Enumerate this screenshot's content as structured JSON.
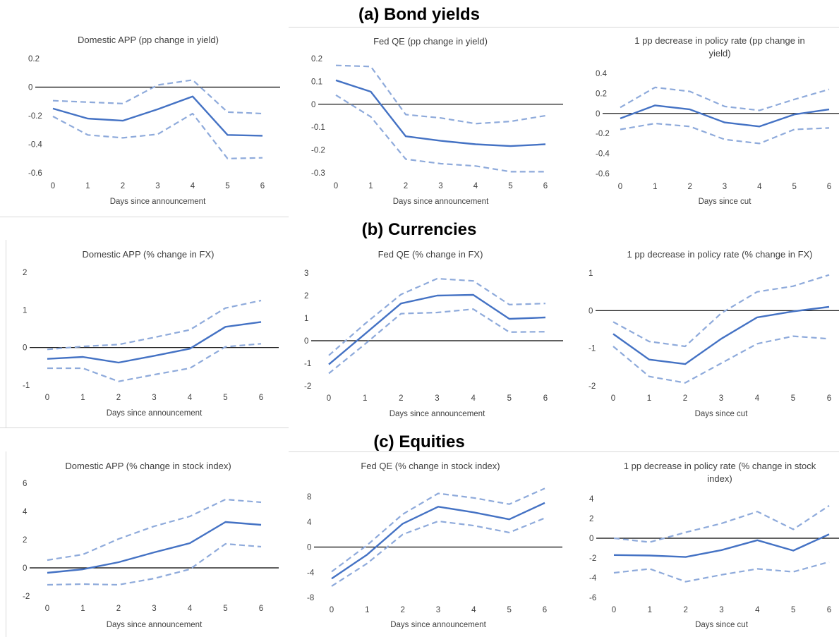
{
  "sections": [
    {
      "title": "(a) Bond yields"
    },
    {
      "title": "(b) Currencies"
    },
    {
      "title": "(c) Equities"
    }
  ],
  "colors": {
    "series": "#4472c4",
    "band": "#8eaadb",
    "zero_line": "#000000",
    "text": "#404040"
  },
  "chart_data": [
    {
      "type": "line",
      "title": "Domestic APP (pp change in yield)",
      "xlabel": "Days since announcement",
      "x": [
        0,
        1,
        2,
        3,
        4,
        5,
        6
      ],
      "ylim": [
        -0.6,
        0.2
      ],
      "yticks": [
        -0.6,
        -0.4,
        -0.2,
        0,
        0.2
      ],
      "legend": "none",
      "series": [
        {
          "role": "estimate",
          "values": [
            -0.15,
            -0.22,
            -0.235,
            -0.155,
            -0.065,
            -0.335,
            -0.34
          ]
        },
        {
          "role": "upper",
          "values": [
            -0.095,
            -0.105,
            -0.115,
            0.015,
            0.05,
            -0.175,
            -0.185
          ]
        },
        {
          "role": "lower",
          "values": [
            -0.205,
            -0.335,
            -0.355,
            -0.33,
            -0.185,
            -0.5,
            -0.495
          ]
        }
      ]
    },
    {
      "type": "line",
      "title": "Fed QE (pp change in yield)",
      "xlabel": "Days since announcement",
      "x": [
        0,
        1,
        2,
        3,
        4,
        5,
        6
      ],
      "ylim": [
        -0.3,
        0.2
      ],
      "yticks": [
        -0.3,
        -0.2,
        -0.1,
        0,
        0.1,
        0.2
      ],
      "legend": "none",
      "series": [
        {
          "role": "estimate",
          "values": [
            0.105,
            0.055,
            -0.14,
            -0.16,
            -0.175,
            -0.183,
            -0.175
          ]
        },
        {
          "role": "upper",
          "values": [
            0.17,
            0.165,
            -0.045,
            -0.06,
            -0.085,
            -0.075,
            -0.05
          ]
        },
        {
          "role": "lower",
          "values": [
            0.04,
            -0.055,
            -0.24,
            -0.26,
            -0.27,
            -0.295,
            -0.295
          ]
        }
      ]
    },
    {
      "type": "line",
      "title": "1 pp decrease in policy rate (pp change in yield)",
      "title_lines": [
        "1 pp decrease in policy rate (pp change in",
        "yield)"
      ],
      "xlabel": "Days since cut",
      "x": [
        0,
        1,
        2,
        3,
        4,
        5,
        6
      ],
      "ylim": [
        -0.6,
        0.4
      ],
      "yticks": [
        -0.6,
        -0.4,
        -0.2,
        0,
        0.2,
        0.4
      ],
      "legend": "none",
      "series": [
        {
          "role": "estimate",
          "values": [
            -0.05,
            0.08,
            0.04,
            -0.09,
            -0.13,
            -0.01,
            0.04
          ]
        },
        {
          "role": "upper",
          "values": [
            0.06,
            0.26,
            0.22,
            0.07,
            0.03,
            0.14,
            0.24
          ]
        },
        {
          "role": "lower",
          "values": [
            -0.16,
            -0.1,
            -0.13,
            -0.26,
            -0.3,
            -0.16,
            -0.145
          ]
        }
      ]
    },
    {
      "type": "line",
      "title": "Domestic APP (% change in FX)",
      "xlabel": "Days since announcement",
      "x": [
        0,
        1,
        2,
        3,
        4,
        5,
        6
      ],
      "ylim": [
        -1,
        2
      ],
      "yticks": [
        -1,
        0,
        1,
        2
      ],
      "legend": "none",
      "series": [
        {
          "role": "estimate",
          "values": [
            -0.3,
            -0.25,
            -0.4,
            -0.22,
            -0.03,
            0.55,
            0.68
          ]
        },
        {
          "role": "upper",
          "values": [
            -0.05,
            0.03,
            0.08,
            0.27,
            0.47,
            1.05,
            1.25
          ]
        },
        {
          "role": "lower",
          "values": [
            -0.55,
            -0.55,
            -0.9,
            -0.72,
            -0.55,
            0.02,
            0.1
          ]
        }
      ]
    },
    {
      "type": "line",
      "title": "Fed QE (% change in FX)",
      "xlabel": "Days since announcement",
      "x": [
        0,
        1,
        2,
        3,
        4,
        5,
        6
      ],
      "ylim": [
        -2,
        3
      ],
      "yticks": [
        -2,
        -1,
        0,
        1,
        2,
        3
      ],
      "legend": "none",
      "series": [
        {
          "role": "estimate",
          "values": [
            -1.05,
            0.3,
            1.65,
            2.0,
            2.03,
            0.97,
            1.03
          ]
        },
        {
          "role": "upper",
          "values": [
            -0.65,
            0.75,
            2.05,
            2.75,
            2.65,
            1.6,
            1.65
          ]
        },
        {
          "role": "lower",
          "values": [
            -1.45,
            -0.15,
            1.2,
            1.25,
            1.4,
            0.38,
            0.4
          ]
        }
      ]
    },
    {
      "type": "line",
      "title": "1 pp decrease in policy rate (% change in FX)",
      "xlabel": "Days since cut",
      "x": [
        0,
        1,
        2,
        3,
        4,
        5,
        6
      ],
      "ylim": [
        -2,
        1
      ],
      "yticks": [
        -2,
        -1,
        0,
        1
      ],
      "legend": "none",
      "series": [
        {
          "role": "estimate",
          "values": [
            -0.62,
            -1.3,
            -1.42,
            -0.75,
            -0.18,
            -0.02,
            0.1
          ]
        },
        {
          "role": "upper",
          "values": [
            -0.3,
            -0.82,
            -0.95,
            -0.07,
            0.5,
            0.65,
            0.95
          ]
        },
        {
          "role": "lower",
          "values": [
            -0.95,
            -1.75,
            -1.92,
            -1.4,
            -0.88,
            -0.68,
            -0.75
          ]
        }
      ]
    },
    {
      "type": "line",
      "title": "Domestic APP (% change in stock index)",
      "xlabel": "Days since announcement",
      "x": [
        0,
        1,
        2,
        3,
        4,
        5,
        6
      ],
      "ylim": [
        -2,
        6
      ],
      "yticks": [
        -2,
        0,
        2,
        4,
        6
      ],
      "legend": "none",
      "series": [
        {
          "role": "estimate",
          "values": [
            -0.35,
            -0.1,
            0.4,
            1.1,
            1.75,
            3.25,
            3.05
          ]
        },
        {
          "role": "upper",
          "values": [
            0.55,
            0.95,
            2.05,
            2.95,
            3.65,
            4.85,
            4.65
          ]
        },
        {
          "role": "lower",
          "values": [
            -1.2,
            -1.15,
            -1.2,
            -0.75,
            -0.1,
            1.7,
            1.5
          ]
        }
      ]
    },
    {
      "type": "line",
      "title": "Fed QE (% change in stock index)",
      "xlabel": "Days since announcement",
      "x": [
        0,
        1,
        2,
        3,
        4,
        5,
        6
      ],
      "ylim": [
        -8,
        8
      ],
      "yticks": [
        -8,
        -4,
        0,
        4,
        8
      ],
      "legend": "none",
      "series": [
        {
          "role": "estimate",
          "values": [
            -5.0,
            -1.2,
            3.7,
            6.4,
            5.5,
            4.4,
            7.0
          ]
        },
        {
          "role": "upper",
          "values": [
            -3.9,
            0.3,
            5.2,
            8.5,
            7.8,
            6.8,
            9.3
          ]
        },
        {
          "role": "lower",
          "values": [
            -6.2,
            -2.6,
            2.0,
            4.1,
            3.4,
            2.3,
            4.6
          ]
        }
      ]
    },
    {
      "type": "line",
      "title": "1 pp decrease in policy rate (% change in stock index)",
      "title_lines": [
        "1 pp decrease in policy rate (% change in stock",
        "index)"
      ],
      "xlabel": "Days since cut",
      "x": [
        0,
        1,
        2,
        3,
        4,
        5,
        6
      ],
      "ylim": [
        -6,
        4
      ],
      "yticks": [
        -6,
        -4,
        -2,
        0,
        2,
        4
      ],
      "legend": "none",
      "series": [
        {
          "role": "estimate",
          "values": [
            -1.7,
            -1.75,
            -1.9,
            -1.2,
            -0.2,
            -1.25,
            0.4
          ]
        },
        {
          "role": "upper",
          "values": [
            0.0,
            -0.4,
            0.6,
            1.5,
            2.7,
            0.9,
            3.3
          ]
        },
        {
          "role": "lower",
          "values": [
            -3.5,
            -3.1,
            -4.4,
            -3.7,
            -3.1,
            -3.4,
            -2.4
          ]
        }
      ]
    }
  ]
}
